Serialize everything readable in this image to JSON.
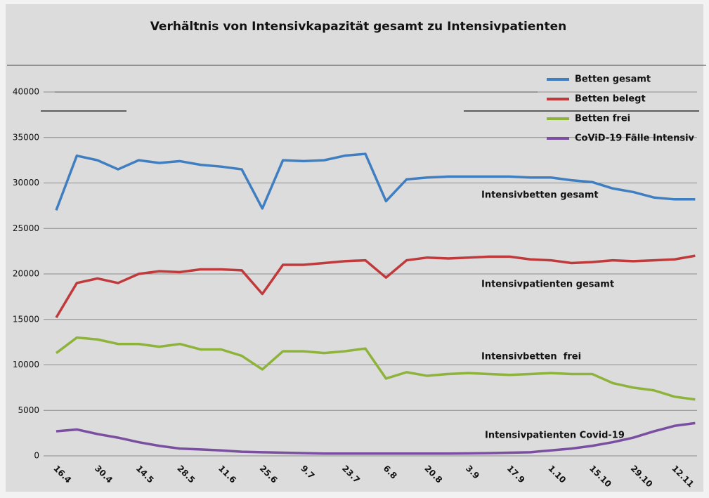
{
  "chart_data": {
    "type": "line",
    "title": "Verhältnis von Intensivkapazität gesamt zu Intensivpatienten",
    "categories": [
      "16.4",
      null,
      "30.4",
      null,
      "14.5",
      null,
      "28.5",
      null,
      "11.6",
      null,
      "25.6",
      null,
      "9.7",
      null,
      "23.7",
      null,
      "6.8",
      null,
      "20.8",
      null,
      "3.9",
      null,
      "17.9",
      null,
      "1.10",
      null,
      "15.10",
      null,
      "29.10",
      null,
      "12.11",
      null
    ],
    "series": [
      {
        "name": "Betten gesamt",
        "color": "#3f7fc1",
        "values": [
          27000,
          33000,
          32500,
          31500,
          32500,
          32200,
          32400,
          32000,
          31800,
          31500,
          27200,
          32500,
          32400,
          32500,
          33000,
          33200,
          28000,
          30400,
          30600,
          30700,
          30700,
          30700,
          30700,
          30600,
          30600,
          30300,
          30100,
          29400,
          29000,
          28400,
          28200,
          28200
        ]
      },
      {
        "name": "Betten belegt",
        "color": "#c0393b",
        "values": [
          15200,
          19000,
          19500,
          19000,
          20000,
          20300,
          20200,
          20500,
          20500,
          20400,
          17800,
          21000,
          21000,
          21200,
          21400,
          21500,
          19600,
          21500,
          21800,
          21700,
          21800,
          21900,
          21900,
          21600,
          21500,
          21200,
          21300,
          21500,
          21400,
          21500,
          21600,
          22000
        ]
      },
      {
        "name": "Betten frei",
        "color": "#8db33b",
        "values": [
          11300,
          13000,
          12800,
          12300,
          12300,
          12000,
          12300,
          11700,
          11700,
          11000,
          9500,
          11500,
          11500,
          11300,
          11500,
          11800,
          8500,
          9200,
          8800,
          9000,
          9100,
          9000,
          8900,
          9000,
          9100,
          9000,
          9000,
          8000,
          7500,
          7200,
          6500,
          6200
        ]
      },
      {
        "name": "CoViD-19 Fälle Intensiv",
        "color": "#7b4fa0",
        "values": [
          2700,
          2900,
          2400,
          2000,
          1500,
          1100,
          800,
          700,
          600,
          450,
          400,
          350,
          300,
          250,
          250,
          250,
          250,
          250,
          250,
          250,
          270,
          300,
          350,
          400,
          600,
          800,
          1100,
          1500,
          2000,
          2700,
          3300,
          3600
        ]
      }
    ],
    "annotations": [
      "Intensivbetten gesamt",
      "Intensivpatienten gesamt",
      "Intensivbetten  frei",
      "Intensivpatienten Covid-19"
    ],
    "ylim": [
      0,
      40000
    ],
    "yticks": [
      0,
      5000,
      10000,
      15000,
      20000,
      25000,
      30000,
      35000,
      40000
    ],
    "grid": true,
    "legend": "top-right"
  }
}
